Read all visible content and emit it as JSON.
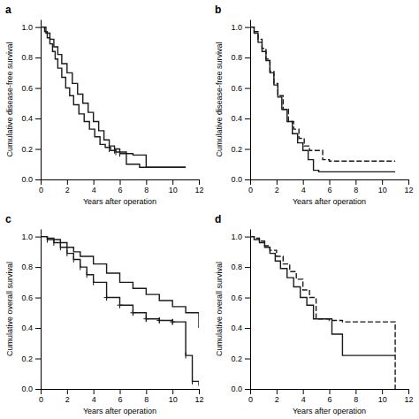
{
  "chart_data": [
    {
      "type": "step",
      "title": "a",
      "ylabel": "Cumulative disease-free survival",
      "xlabel": "Years after operation",
      "xlim": [
        0,
        12
      ],
      "ylim": [
        0.0,
        1.05
      ],
      "xticks": [
        0,
        2,
        4,
        6,
        8,
        10,
        12
      ],
      "yticks": [
        {
          "value": 0.0,
          "label": "0.0"
        },
        0.2,
        0.4,
        0.6,
        0.8,
        {
          "value": 1.0,
          "label": "1.0"
        }
      ],
      "series": [
        {
          "color": "#1a1a1a",
          "line_style": "solid",
          "x": [
            0,
            0.3,
            0.5,
            0.7,
            0.9,
            1.1,
            1.3,
            1.6,
            1.9,
            2.2,
            2.5,
            2.9,
            3.3,
            3.7,
            4.1,
            4.5,
            4.9,
            5.3,
            5.7,
            6.5,
            7.5,
            11.0
          ],
          "values": [
            1.0,
            0.97,
            0.93,
            0.89,
            0.84,
            0.79,
            0.73,
            0.67,
            0.6,
            0.55,
            0.49,
            0.43,
            0.38,
            0.33,
            0.28,
            0.23,
            0.21,
            0.19,
            0.18,
            0.1,
            0.08,
            0.08
          ]
        },
        {
          "color": "#1a1a1a",
          "line_style": "solid",
          "x": [
            0,
            0.4,
            0.7,
            1.0,
            1.3,
            1.6,
            2.0,
            2.4,
            2.8,
            3.2,
            3.6,
            4.0,
            4.4,
            4.8,
            5.2,
            5.6,
            6.0,
            7.0,
            8.0,
            11.0
          ],
          "values": [
            1.0,
            0.96,
            0.92,
            0.87,
            0.82,
            0.76,
            0.7,
            0.63,
            0.56,
            0.5,
            0.44,
            0.38,
            0.32,
            0.26,
            0.22,
            0.2,
            0.17,
            0.16,
            0.08,
            0.08
          ]
        },
        {
          "type": "scatter",
          "color": "#1a1a1a",
          "marker": "tick",
          "x": [
            5.2,
            5.7,
            6.0,
            5.6
          ],
          "values": [
            0.2,
            0.18,
            0.17,
            0.19
          ]
        }
      ]
    },
    {
      "type": "step",
      "title": "b",
      "ylabel": "Cumulative disease-free survival",
      "xlabel": "Years after operation",
      "xlim": [
        0,
        12
      ],
      "ylim": [
        0.0,
        1.05
      ],
      "xticks": [
        0,
        2,
        4,
        6,
        8,
        10,
        12
      ],
      "yticks": [
        {
          "value": 0.0,
          "label": "0.0"
        },
        0.2,
        0.4,
        0.6,
        0.8,
        {
          "value": 1.0,
          "label": "1.0"
        }
      ],
      "series": [
        {
          "color": "#1a1a1a",
          "line_style": "solid",
          "x": [
            0,
            0.3,
            0.6,
            0.9,
            1.2,
            1.5,
            1.8,
            2.1,
            2.4,
            2.8,
            3.2,
            3.6,
            4.0,
            4.4,
            4.8,
            5.2,
            11.0
          ],
          "values": [
            1.0,
            0.96,
            0.9,
            0.84,
            0.78,
            0.7,
            0.62,
            0.54,
            0.46,
            0.38,
            0.3,
            0.24,
            0.19,
            0.13,
            0.06,
            0.05,
            0.05
          ]
        },
        {
          "color": "#1a1a1a",
          "line_style": "dashed",
          "x": [
            0,
            0.3,
            0.6,
            0.9,
            1.2,
            1.5,
            1.8,
            2.1,
            2.5,
            2.9,
            3.3,
            3.7,
            4.1,
            4.5,
            5.0,
            5.5,
            6.0,
            11.0
          ],
          "values": [
            1.0,
            0.97,
            0.92,
            0.86,
            0.79,
            0.71,
            0.63,
            0.55,
            0.46,
            0.38,
            0.33,
            0.27,
            0.22,
            0.19,
            0.19,
            0.13,
            0.12,
            0.12
          ]
        }
      ]
    },
    {
      "type": "step",
      "title": "c",
      "ylabel": "Cumulative overall survival",
      "xlabel": "Years after operation",
      "xlim": [
        0,
        12
      ],
      "ylim": [
        0.0,
        1.05
      ],
      "xticks": [
        0,
        2,
        4,
        6,
        8,
        10,
        12
      ],
      "yticks": [
        {
          "value": 0.0,
          "label": "0.0"
        },
        0.2,
        0.4,
        0.6,
        0.8,
        {
          "value": 1.0,
          "label": "1.0"
        }
      ],
      "series": [
        {
          "color": "#1a1a1a",
          "line_style": "solid",
          "x": [
            0,
            0.5,
            1.0,
            1.5,
            2.0,
            2.5,
            3.0,
            4.0,
            5.0,
            6.0,
            7.0,
            8.0,
            9.0,
            10.0,
            11.0,
            12.0
          ],
          "values": [
            1.0,
            0.99,
            0.98,
            0.96,
            0.93,
            0.9,
            0.87,
            0.82,
            0.76,
            0.7,
            0.66,
            0.62,
            0.58,
            0.54,
            0.5,
            0.4
          ]
        },
        {
          "color": "#1a1a1a",
          "line_style": "solid",
          "marker": "tick",
          "x": [
            0,
            0.5,
            1.0,
            1.5,
            2.0,
            2.5,
            3.0,
            3.5,
            4.0,
            5.0,
            6.0,
            7.0,
            8.0,
            9.0,
            10.0,
            11.0,
            11.5,
            12.0
          ],
          "values": [
            1.0,
            0.98,
            0.96,
            0.93,
            0.89,
            0.85,
            0.8,
            0.75,
            0.7,
            0.6,
            0.55,
            0.5,
            0.46,
            0.45,
            0.44,
            0.22,
            0.05,
            0.02
          ]
        },
        {
          "type": "scatter",
          "color": "#1a1a1a",
          "marker": "plus",
          "x": [
            5.0,
            6.0,
            7.0,
            8.0,
            9.0,
            10.0
          ],
          "values": [
            0.6,
            0.55,
            0.5,
            0.46,
            0.45,
            0.44
          ]
        }
      ]
    },
    {
      "type": "step",
      "title": "d",
      "ylabel": "Cumulative overall survival",
      "xlabel": "Years after operation",
      "xlim": [
        0,
        12
      ],
      "ylim": [
        0.0,
        1.05
      ],
      "xticks": [
        0,
        2,
        4,
        6,
        8,
        10,
        12
      ],
      "yticks": [
        {
          "value": 0.0,
          "label": "0.0"
        },
        0.2,
        0.4,
        0.6,
        0.8,
        {
          "value": 1.0,
          "label": "1.0"
        }
      ],
      "series": [
        {
          "color": "#1a1a1a",
          "line_style": "solid",
          "x": [
            0,
            0.3,
            0.7,
            1.1,
            1.5,
            1.9,
            2.3,
            2.8,
            3.3,
            3.8,
            4.3,
            4.8,
            5.5,
            6.2,
            7.0,
            8.5,
            11.0
          ],
          "values": [
            1.0,
            0.98,
            0.96,
            0.93,
            0.89,
            0.84,
            0.79,
            0.73,
            0.67,
            0.6,
            0.55,
            0.46,
            0.46,
            0.36,
            0.22,
            0.22,
            0.22
          ]
        },
        {
          "color": "#1a1a1a",
          "line_style": "dashed",
          "x": [
            0,
            0.3,
            0.7,
            1.1,
            1.5,
            2.0,
            2.5,
            3.0,
            3.5,
            4.0,
            4.5,
            5.0,
            5.5,
            6.0,
            7.0,
            8.0,
            10.5,
            11.0
          ],
          "values": [
            1.0,
            0.99,
            0.97,
            0.94,
            0.91,
            0.87,
            0.82,
            0.77,
            0.72,
            0.65,
            0.6,
            0.46,
            0.46,
            0.45,
            0.44,
            0.44,
            0.44,
            0.0
          ]
        }
      ]
    }
  ]
}
